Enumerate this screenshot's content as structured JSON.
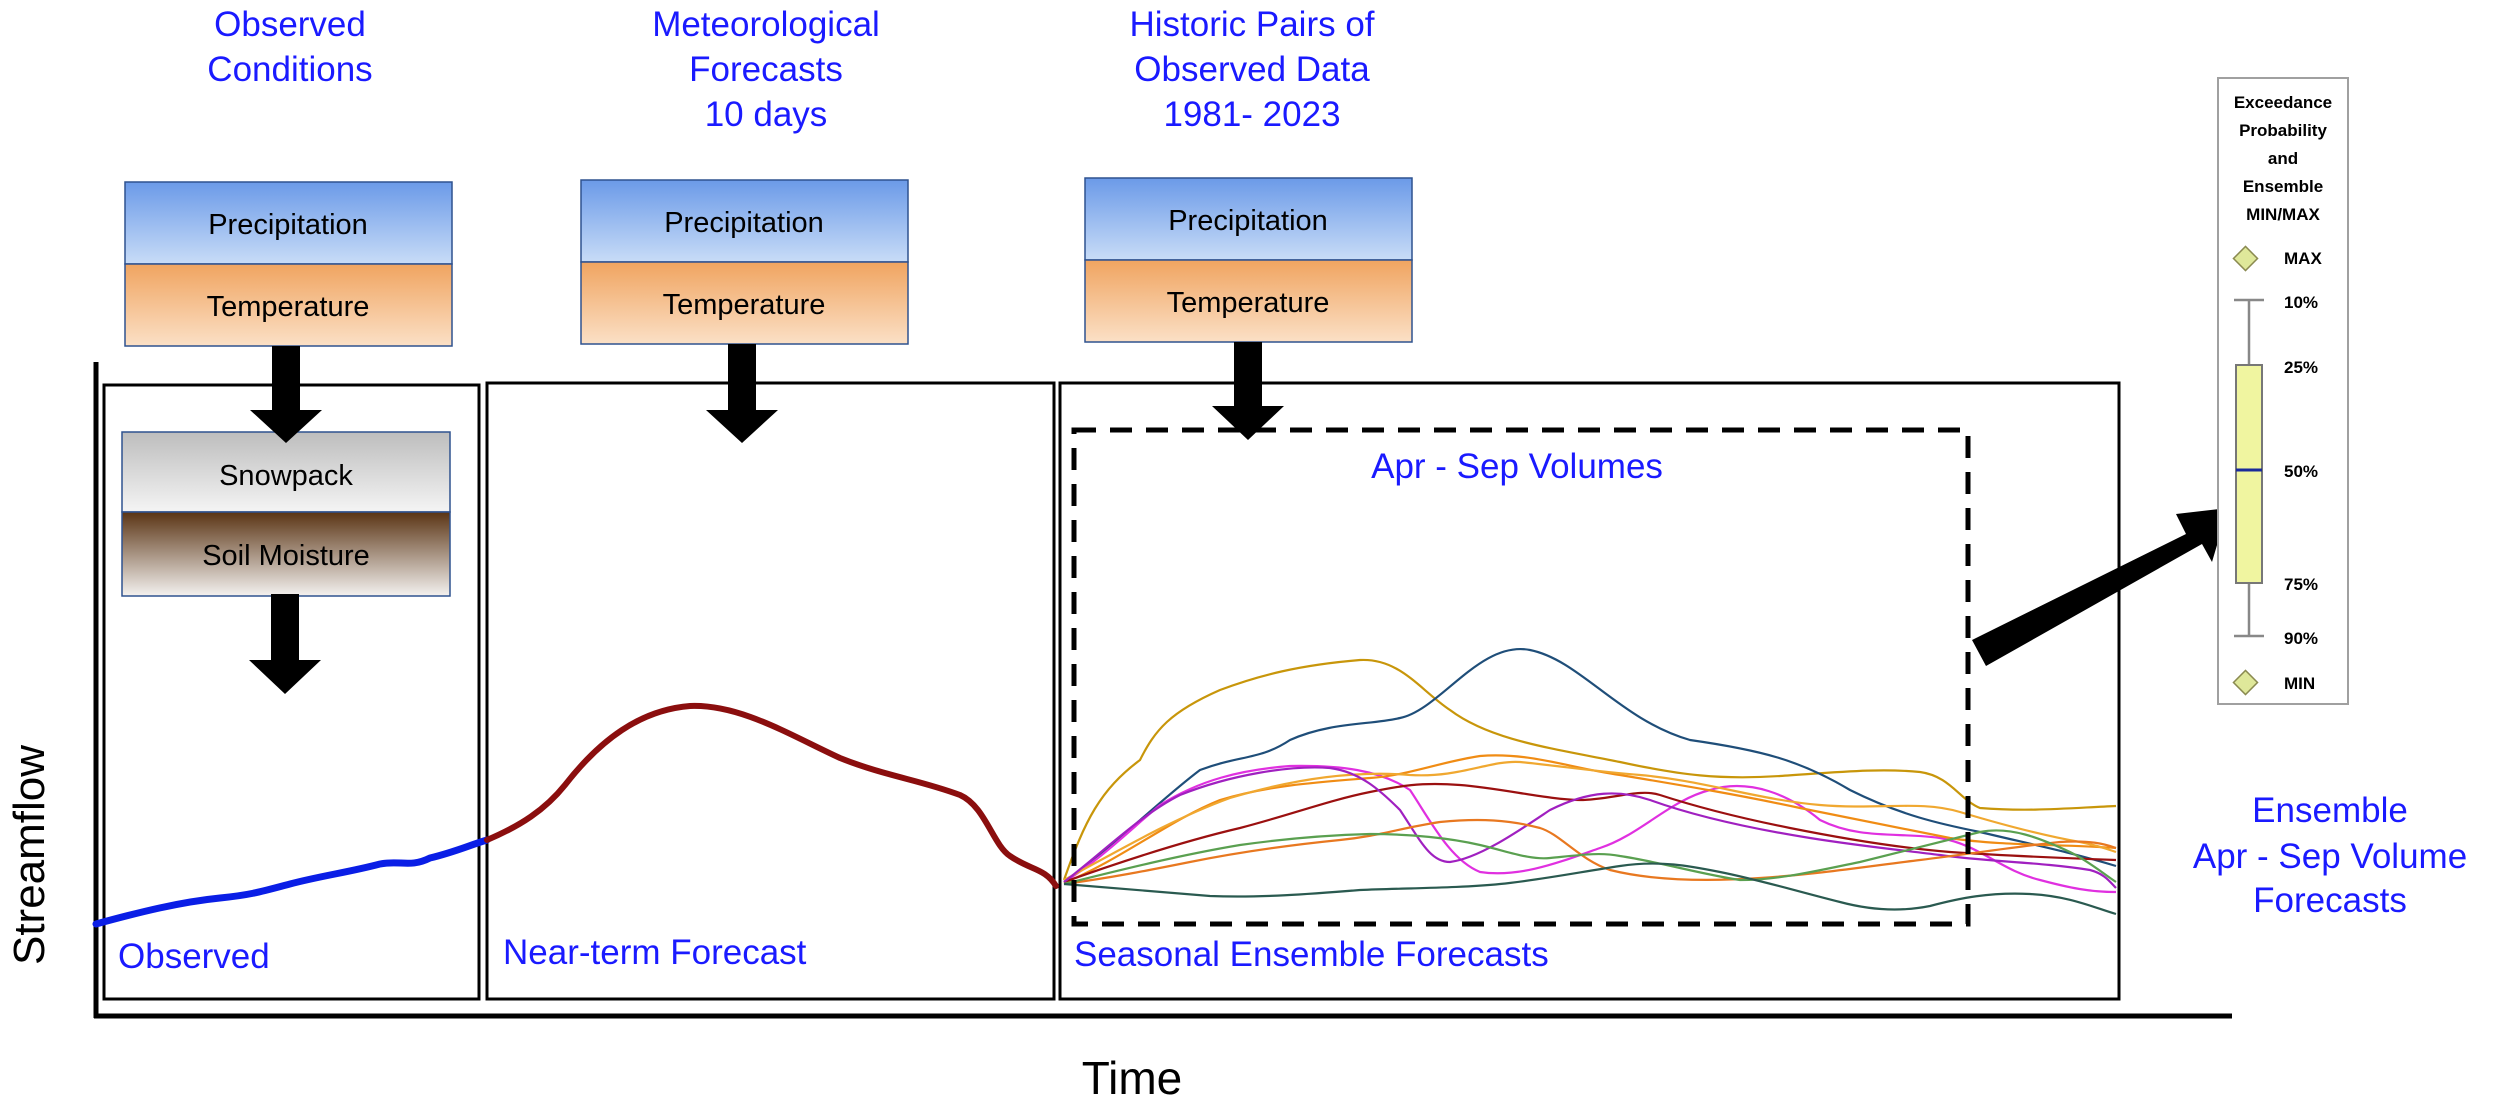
{
  "headers": {
    "observed_line1": "Observed",
    "observed_line2": "Conditions",
    "met_line1": "Meteorological",
    "met_line2": "Forecasts",
    "met_line3": "10 days",
    "hist_line1": "Historic Pairs of",
    "hist_line2": "Observed Data",
    "hist_line3": "1981- 2023"
  },
  "boxes": {
    "precipitation": "Precipitation",
    "temperature": "Temperature",
    "snowpack": "Snowpack",
    "soil_moisture": "Soil Moisture"
  },
  "panels": {
    "observed": "Observed",
    "near_term": "Near-term Forecast",
    "seasonal": "Seasonal Ensemble Forecasts",
    "volumes": "Apr - Sep Volumes"
  },
  "axes": {
    "y": "Streamflow",
    "x": "Time"
  },
  "ensemble_label": {
    "line1": "Ensemble",
    "line2": "Apr - Sep Volume",
    "line3": "Forecasts"
  },
  "legend": {
    "title1": "Exceedance",
    "title2": "Probability",
    "title3": "and",
    "title4": "Ensemble",
    "title5": "MIN/MAX",
    "max": "MAX",
    "p10": "10%",
    "p25": "25%",
    "p50": "50%",
    "p75": "75%",
    "p90": "90%",
    "min": "MIN"
  },
  "colors": {
    "header_text": "#1a1aff",
    "observed_line": "#0a1ee6",
    "forecast_line": "#8b0e0e",
    "precip_top": "#6b9ae8",
    "precip_bottom": "#c8dcf7",
    "temp_top": "#f0a460",
    "temp_bottom": "#fbe0c6",
    "snow_top": "#bdbdbd",
    "snow_bottom": "#f4f4f4",
    "soil_top": "#5a3414",
    "soil_bottom": "#f4f2f0",
    "legend_box": "#f0f5a0",
    "legend_median": "#1a2a9a",
    "legend_diamond": "#dfe89a",
    "ensemble": [
      "#c8960a",
      "#1f4e79",
      "#e030e0",
      "#f08c14",
      "#9b1010",
      "#f0a830",
      "#a020c0",
      "#e87820",
      "#5aa050",
      "#2a5a50"
    ]
  }
}
